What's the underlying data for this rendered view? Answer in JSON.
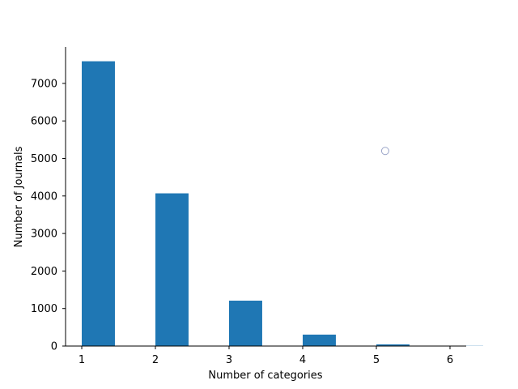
{
  "chart_data": {
    "type": "bar",
    "title": "",
    "xlabel": "Number of categories",
    "ylabel": "Number of Journals",
    "x": [
      1,
      2,
      3,
      4,
      5,
      6
    ],
    "values": [
      7590,
      4070,
      1210,
      305,
      45,
      5
    ],
    "bar_width": 0.45,
    "xlim": [
      0.78,
      6.22
    ],
    "ylim": [
      0,
      7970
    ],
    "xticks": [
      1,
      2,
      3,
      4,
      5,
      6
    ],
    "yticks": [
      0,
      1000,
      2000,
      3000,
      4000,
      5000,
      6000,
      7000
    ],
    "grid": false,
    "legend": "none",
    "colors": {
      "bar": "#1f77b4",
      "axis": "#000000"
    }
  },
  "annotations": {
    "marker": {
      "x": 5.12,
      "y": 5200,
      "color": "#9aa4c8"
    }
  }
}
